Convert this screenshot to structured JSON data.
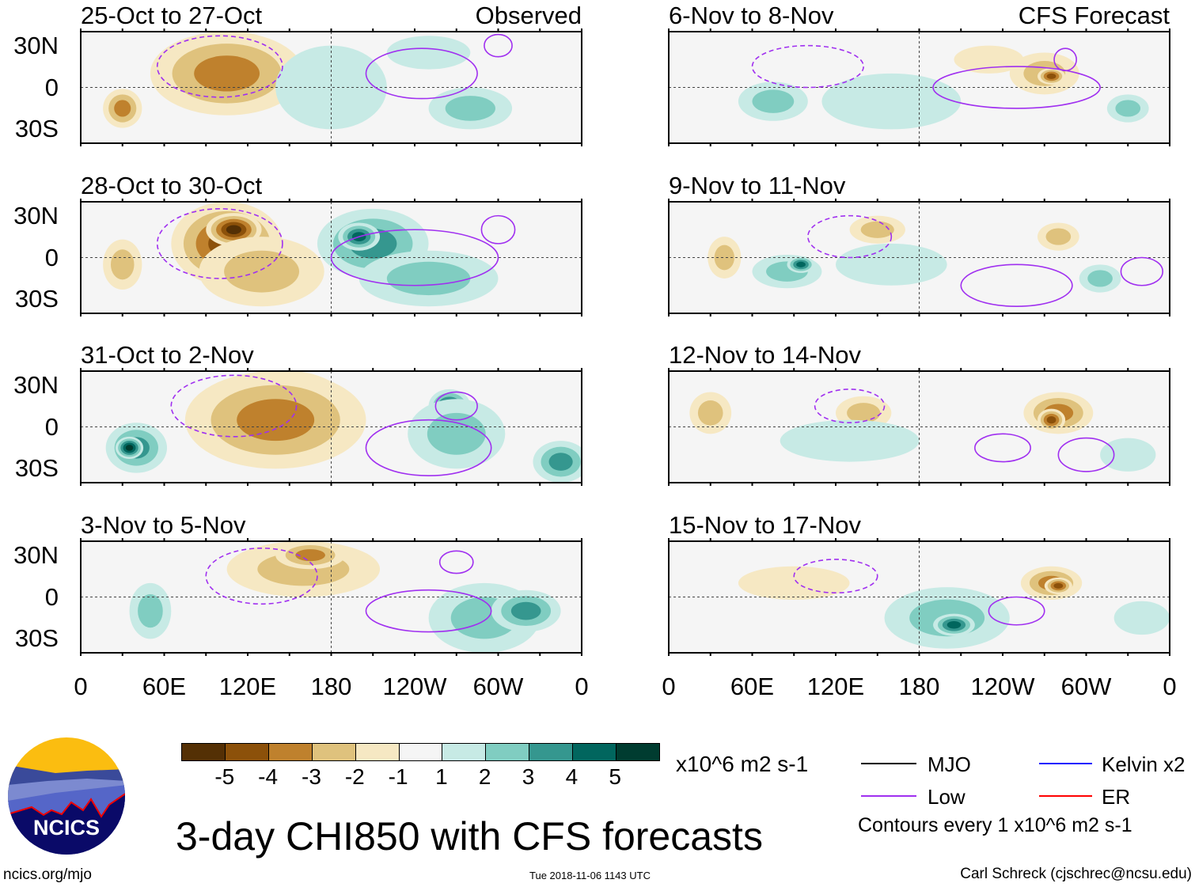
{
  "chart_data": {
    "type": "heatmap",
    "title": "3-day CHI850 with CFS forecasts",
    "units": "x10^6 m2 s-1",
    "panel_labels": {
      "observed": "Observed",
      "forecast": "CFS Forecast"
    },
    "lat_ticks": [
      "30N",
      "0",
      "30S"
    ],
    "lon_ticks": [
      "0",
      "60E",
      "120E",
      "180",
      "120W",
      "60W",
      "0"
    ],
    "colorbar": {
      "levels": [
        "-5",
        "-4",
        "-3",
        "-2",
        "-1",
        "1",
        "2",
        "3",
        "4",
        "5"
      ],
      "colors": [
        "#543005",
        "#8c510a",
        "#bf812d",
        "#dfc27d",
        "#f6e8c3",
        "#f5f5f5",
        "#c7eae5",
        "#80cdc1",
        "#35978f",
        "#01665e",
        "#003c30"
      ]
    },
    "panels": [
      {
        "title": "25-Oct to 27-Oct",
        "type": "observed",
        "anomalies": [
          [
            110,
            20,
            35,
            20,
            -5
          ],
          [
            105,
            10,
            55,
            30,
            -3
          ],
          [
            30,
            -15,
            14,
            14,
            -3
          ],
          [
            195,
            5,
            22,
            14,
            3
          ],
          [
            180,
            0,
            40,
            30,
            1
          ],
          [
            280,
            -15,
            30,
            15,
            2
          ],
          [
            250,
            25,
            30,
            12,
            1
          ]
        ],
        "lows": [
          [
            100,
            15,
            45,
            22
          ],
          [
            245,
            10,
            40,
            18
          ],
          [
            300,
            30,
            10,
            8
          ]
        ]
      },
      {
        "title": "28-Oct to 30-Oct",
        "type": "observed",
        "anomalies": [
          [
            105,
            10,
            40,
            30,
            -4
          ],
          [
            110,
            20,
            20,
            12,
            -5
          ],
          [
            130,
            -10,
            45,
            25,
            -2
          ],
          [
            30,
            -5,
            14,
            18,
            -2
          ],
          [
            210,
            10,
            40,
            25,
            3
          ],
          [
            200,
            15,
            15,
            10,
            4
          ],
          [
            250,
            -15,
            50,
            20,
            2
          ]
        ],
        "lows": [
          [
            100,
            10,
            45,
            25
          ],
          [
            240,
            0,
            60,
            20
          ],
          [
            300,
            20,
            12,
            10
          ]
        ]
      },
      {
        "title": "31-Oct to 2-Nov",
        "type": "observed",
        "anomalies": [
          [
            150,
            10,
            45,
            30,
            -5
          ],
          [
            140,
            5,
            65,
            35,
            -3
          ],
          [
            40,
            -15,
            22,
            18,
            3
          ],
          [
            35,
            -15,
            10,
            8,
            5
          ],
          [
            265,
            15,
            15,
            12,
            4
          ],
          [
            270,
            -5,
            35,
            25,
            2
          ],
          [
            345,
            -25,
            20,
            15,
            3
          ]
        ],
        "lows": [
          [
            110,
            15,
            45,
            22
          ],
          [
            270,
            15,
            15,
            10
          ],
          [
            250,
            -15,
            45,
            20
          ]
        ]
      },
      {
        "title": "3-Nov to 5-Nov",
        "type": "observed",
        "anomalies": [
          [
            160,
            20,
            55,
            20,
            -2
          ],
          [
            165,
            30,
            25,
            10,
            -3
          ],
          [
            50,
            -10,
            15,
            20,
            2
          ],
          [
            290,
            -15,
            40,
            25,
            2
          ],
          [
            320,
            -10,
            25,
            15,
            3
          ]
        ],
        "lows": [
          [
            130,
            15,
            40,
            20
          ],
          [
            270,
            25,
            12,
            8
          ],
          [
            250,
            -10,
            45,
            15
          ]
        ]
      },
      {
        "title": "6-Nov to 8-Nov",
        "type": "forecast",
        "anomalies": [
          [
            270,
            10,
            25,
            15,
            -2
          ],
          [
            275,
            8,
            10,
            6,
            -4
          ],
          [
            75,
            -10,
            25,
            14,
            2
          ],
          [
            160,
            -10,
            50,
            20,
            1
          ],
          [
            230,
            20,
            25,
            10,
            -1
          ],
          [
            330,
            -15,
            15,
            10,
            2
          ]
        ],
        "lows": [
          [
            100,
            15,
            40,
            15
          ],
          [
            250,
            0,
            60,
            15
          ],
          [
            285,
            20,
            8,
            8
          ]
        ]
      },
      {
        "title": "9-Nov to 11-Nov",
        "type": "forecast",
        "anomalies": [
          [
            85,
            -10,
            25,
            12,
            2
          ],
          [
            95,
            -5,
            10,
            6,
            4
          ],
          [
            160,
            -5,
            40,
            15,
            1
          ],
          [
            150,
            20,
            20,
            10,
            -2
          ],
          [
            280,
            15,
            15,
            10,
            -2
          ],
          [
            40,
            0,
            12,
            15,
            -2
          ],
          [
            310,
            -15,
            15,
            10,
            2
          ]
        ],
        "lows": [
          [
            130,
            15,
            30,
            15
          ],
          [
            250,
            -20,
            40,
            15
          ],
          [
            340,
            -10,
            15,
            10
          ]
        ]
      },
      {
        "title": "12-Nov to 14-Nov",
        "type": "forecast",
        "anomalies": [
          [
            280,
            10,
            25,
            15,
            -3
          ],
          [
            275,
            5,
            10,
            8,
            -4
          ],
          [
            30,
            10,
            15,
            15,
            -2
          ],
          [
            140,
            10,
            20,
            12,
            -2
          ],
          [
            130,
            -10,
            50,
            15,
            1
          ],
          [
            330,
            -20,
            20,
            12,
            1
          ]
        ],
        "lows": [
          [
            130,
            15,
            25,
            12
          ],
          [
            240,
            -15,
            20,
            10
          ],
          [
            300,
            -20,
            20,
            12
          ]
        ]
      },
      {
        "title": "15-Nov to 17-Nov",
        "type": "forecast",
        "anomalies": [
          [
            275,
            10,
            22,
            12,
            -3
          ],
          [
            280,
            8,
            10,
            6,
            -4
          ],
          [
            200,
            -15,
            45,
            22,
            2
          ],
          [
            205,
            -20,
            15,
            8,
            4
          ],
          [
            90,
            10,
            40,
            12,
            -1
          ],
          [
            340,
            -15,
            20,
            12,
            1
          ]
        ],
        "lows": [
          [
            120,
            15,
            30,
            12
          ],
          [
            250,
            -10,
            20,
            10
          ]
        ]
      }
    ]
  },
  "legend": {
    "units_label": "x10^6 m2 s-1",
    "items": [
      {
        "label": "MJO",
        "color": "#000000"
      },
      {
        "label": "Low",
        "color": "#a030f0"
      },
      {
        "label": "Kelvin x2",
        "color": "#1a1aff"
      },
      {
        "label": "ER",
        "color": "#ff0000"
      }
    ],
    "contour_note": "Contours every 1 x10^6 m2 s-1"
  },
  "footer": {
    "logo_text": "NCICS",
    "url": "ncics.org/mjo",
    "timestamp": "Tue 2018-11-06 1143 UTC",
    "author": "Carl Schreck (cjschrec@ncsu.edu)",
    "title": "3-day CHI850 with CFS forecasts"
  }
}
